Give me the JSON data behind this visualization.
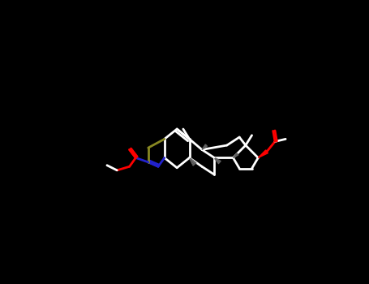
{
  "bg": "#000000",
  "white": "#ffffff",
  "blue": "#2222cc",
  "sulfur": "#888822",
  "red": "#ff0000",
  "gray_wedge": "#606060",
  "lw": 2.0,
  "lw_thick": 2.5
}
